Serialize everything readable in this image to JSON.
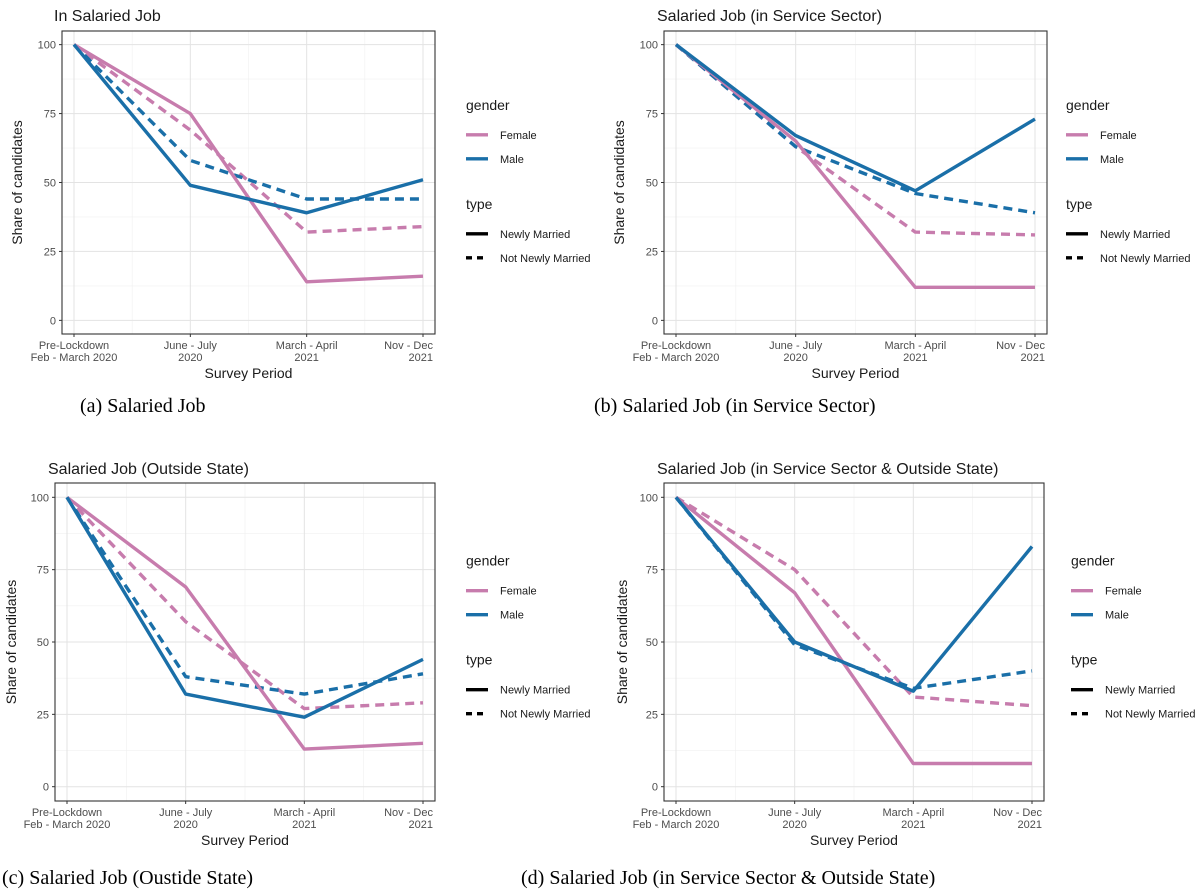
{
  "colors": {
    "Female": "#c77cad",
    "Male": "#1a6fa8"
  },
  "chart_data": [
    {
      "type": "line",
      "title": "In Salaried Job",
      "caption": "(a) Salaried Job",
      "xlabel": "Survey Period",
      "ylabel": "Share of candidates",
      "categories": [
        "Pre-Lockdown\nFeb - March 2020",
        "June - July\n2020",
        "March - April\n2021",
        "Nov - Dec\n2021"
      ],
      "ylim": [
        0,
        100
      ],
      "yticks": [
        0,
        25,
        50,
        75,
        100
      ],
      "grid": true,
      "legend": {
        "gender_title": "gender",
        "gender_items": [
          "Female",
          "Male"
        ],
        "type_title": "type",
        "type_items": [
          "Newly Married",
          "Not Newly Married"
        ]
      },
      "series": [
        {
          "name": "Female, Newly Married",
          "gender": "Female",
          "type": "Newly Married",
          "values": [
            100,
            75,
            14,
            16
          ]
        },
        {
          "name": "Female, Not Newly Married",
          "gender": "Female",
          "type": "Not Newly Married",
          "values": [
            100,
            69,
            32,
            34
          ]
        },
        {
          "name": "Male, Newly Married",
          "gender": "Male",
          "type": "Newly Married",
          "values": [
            100,
            49,
            39,
            51
          ]
        },
        {
          "name": "Male, Not Newly Married",
          "gender": "Male",
          "type": "Not Newly Married",
          "values": [
            100,
            58,
            44,
            44
          ]
        }
      ]
    },
    {
      "type": "line",
      "title": "Salaried Job (in Service Sector)",
      "caption": "(b) Salaried Job (in Service Sector)",
      "xlabel": "Survey Period",
      "ylabel": "Share of candidates",
      "categories": [
        "Pre-Lockdown\nFeb - March 2020",
        "June - July\n2020",
        "March - April\n2021",
        "Nov - Dec\n2021"
      ],
      "ylim": [
        0,
        100
      ],
      "yticks": [
        0,
        25,
        50,
        75,
        100
      ],
      "grid": true,
      "legend": {
        "gender_title": "gender",
        "gender_items": [
          "Female",
          "Male"
        ],
        "type_title": "type",
        "type_items": [
          "Newly Married",
          "Not Newly Married"
        ]
      },
      "series": [
        {
          "name": "Female, Newly Married",
          "gender": "Female",
          "type": "Newly Married",
          "values": [
            100,
            65,
            12,
            12
          ]
        },
        {
          "name": "Female, Not Newly Married",
          "gender": "Female",
          "type": "Not Newly Married",
          "values": [
            100,
            63,
            32,
            31
          ]
        },
        {
          "name": "Male, Newly Married",
          "gender": "Male",
          "type": "Newly Married",
          "values": [
            100,
            67,
            47,
            73
          ]
        },
        {
          "name": "Male, Not Newly Married",
          "gender": "Male",
          "type": "Not Newly Married",
          "values": [
            100,
            63,
            46,
            39
          ]
        }
      ]
    },
    {
      "type": "line",
      "title": "Salaried Job (Outside State)",
      "caption": "(c) Salaried Job (Oustide State)",
      "xlabel": "Survey Period",
      "ylabel": "Share of candidates",
      "categories": [
        "Pre-Lockdown\nFeb - March 2020",
        "June - July\n2020",
        "March - April\n2021",
        "Nov - Dec\n2021"
      ],
      "ylim": [
        0,
        100
      ],
      "yticks": [
        0,
        25,
        50,
        75,
        100
      ],
      "grid": true,
      "legend": {
        "gender_title": "gender",
        "gender_items": [
          "Female",
          "Male"
        ],
        "type_title": "type",
        "type_items": [
          "Newly Married",
          "Not Newly Married"
        ]
      },
      "series": [
        {
          "name": "Female, Newly Married",
          "gender": "Female",
          "type": "Newly Married",
          "values": [
            100,
            69,
            13,
            15
          ]
        },
        {
          "name": "Female, Not Newly Married",
          "gender": "Female",
          "type": "Not Newly Married",
          "values": [
            100,
            57,
            27,
            29
          ]
        },
        {
          "name": "Male, Newly Married",
          "gender": "Male",
          "type": "Newly Married",
          "values": [
            100,
            32,
            24,
            44
          ]
        },
        {
          "name": "Male, Not Newly Married",
          "gender": "Male",
          "type": "Not Newly Married",
          "values": [
            100,
            38,
            32,
            39
          ]
        }
      ]
    },
    {
      "type": "line",
      "title": "Salaried Job (in Service Sector & Outside State)",
      "caption": "(d) Salaried Job (in Service Sector & Outside State)",
      "xlabel": "Survey Period",
      "ylabel": "Share of candidates",
      "categories": [
        "Pre-Lockdown\nFeb - March 2020",
        "June - July\n2020",
        "March - April\n2021",
        "Nov - Dec\n2021"
      ],
      "ylim": [
        0,
        100
      ],
      "yticks": [
        0,
        25,
        50,
        75,
        100
      ],
      "grid": true,
      "legend": {
        "gender_title": "gender",
        "gender_items": [
          "Female",
          "Male"
        ],
        "type_title": "type",
        "type_items": [
          "Newly Married",
          "Not Newly Married"
        ]
      },
      "series": [
        {
          "name": "Female, Newly Married",
          "gender": "Female",
          "type": "Newly Married",
          "values": [
            100,
            67,
            8,
            8
          ]
        },
        {
          "name": "Female, Not Newly Married",
          "gender": "Female",
          "type": "Not Newly Married",
          "values": [
            100,
            75,
            31,
            28
          ]
        },
        {
          "name": "Male, Newly Married",
          "gender": "Male",
          "type": "Newly Married",
          "values": [
            100,
            50,
            33,
            83
          ]
        },
        {
          "name": "Male, Not Newly Married",
          "gender": "Male",
          "type": "Not Newly Married",
          "values": [
            100,
            49,
            34,
            40
          ]
        }
      ]
    }
  ]
}
